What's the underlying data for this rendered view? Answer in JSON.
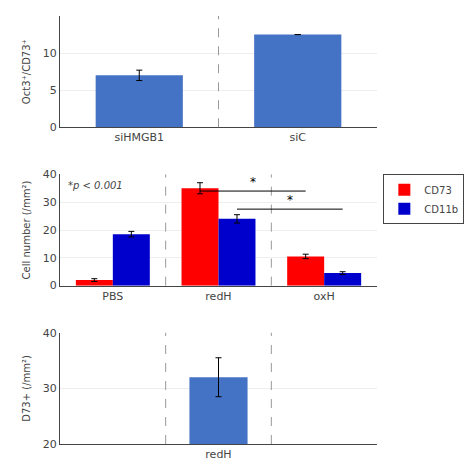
{
  "chart_data": [
    {
      "type": "bar",
      "categories": [
        "siHMGB1",
        "siC"
      ],
      "values": [
        7.0,
        12.5
      ],
      "errors": [
        0.7,
        0.0
      ],
      "color": "#4472C4",
      "ylabel": "Oct3⁺/CD73⁺",
      "ylim": [
        0,
        15
      ],
      "yticks": [
        0,
        5,
        10
      ],
      "grid": true
    },
    {
      "type": "bar",
      "categories": [
        "PBS",
        "redH",
        "oxH"
      ],
      "series": [
        {
          "name": "CD73",
          "color": "#FF0000",
          "values": [
            2.0,
            35.0,
            10.5
          ],
          "errors": [
            0.5,
            2.0,
            0.8
          ]
        },
        {
          "name": "CD11b",
          "color": "#0000CC",
          "values": [
            18.5,
            24.0,
            4.5
          ],
          "errors": [
            1.0,
            1.5,
            0.5
          ]
        }
      ],
      "ylabel": "Cell number (/mm²)",
      "ylim": [
        0,
        40
      ],
      "yticks": [
        0,
        10,
        20,
        30,
        40
      ],
      "annotations": [
        "*p < 0.001"
      ],
      "significance": [
        {
          "series": "CD73",
          "from": "redH",
          "to": "oxH",
          "y": 34.0,
          "label": "*"
        },
        {
          "series": "CD11b",
          "from": "redH",
          "to": "oxH",
          "y": 27.5,
          "label": "*"
        }
      ],
      "legend": "upper right",
      "grid": true
    },
    {
      "type": "bar",
      "categories": [
        null,
        "redH",
        null
      ],
      "values": [
        null,
        32.0,
        null
      ],
      "errors": [
        null,
        3.5,
        null
      ],
      "color": "#4472C4",
      "ylabel": "D73+ (/mm²)",
      "ylim": [
        20,
        40
      ],
      "yticks": [
        20,
        30,
        40
      ],
      "grid": true
    }
  ]
}
